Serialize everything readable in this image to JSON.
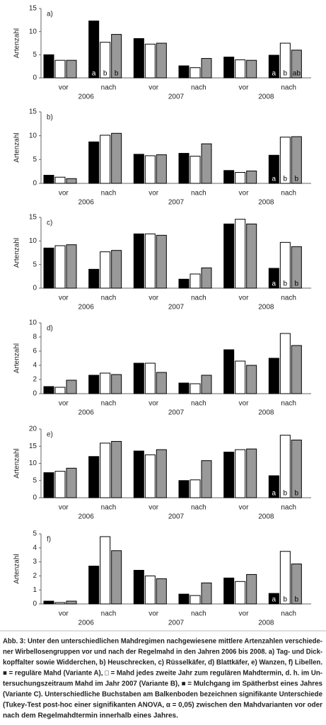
{
  "chart_data": [
    {
      "type": "bar",
      "title": "a)",
      "y_label": "Artenzahl",
      "categories": [
        "vor",
        "nach",
        "vor",
        "nach",
        "vor",
        "nach"
      ],
      "groups": [
        "2006",
        "2007",
        "2008"
      ],
      "ylim": [
        0,
        15
      ],
      "yticks": [
        0,
        5,
        10,
        15
      ],
      "series": [
        {
          "color": "#000000",
          "values": [
            5.0,
            12.3,
            8.5,
            2.6,
            4.5,
            4.9
          ],
          "letters": [
            null,
            "a",
            null,
            null,
            null,
            "a"
          ]
        },
        {
          "color": "#ffffff",
          "values": [
            3.8,
            7.7,
            7.3,
            2.2,
            3.9,
            7.5
          ],
          "letters": [
            null,
            "b",
            null,
            null,
            null,
            "b"
          ]
        },
        {
          "color": "#999999",
          "values": [
            3.8,
            9.4,
            7.5,
            4.2,
            3.8,
            6.0
          ],
          "letters": [
            null,
            "b",
            null,
            null,
            null,
            "ab"
          ]
        }
      ]
    },
    {
      "type": "bar",
      "title": "b)",
      "y_label": "Artenzahl",
      "categories": [
        "vor",
        "nach",
        "vor",
        "nach",
        "vor",
        "nach"
      ],
      "groups": [
        "2006",
        "2007",
        "2008"
      ],
      "ylim": [
        0,
        15
      ],
      "yticks": [
        0,
        5,
        10,
        15
      ],
      "series": [
        {
          "color": "#000000",
          "values": [
            1.7,
            8.7,
            6.1,
            6.3,
            2.7,
            5.9
          ],
          "letters": [
            null,
            null,
            null,
            null,
            null,
            "a"
          ]
        },
        {
          "color": "#ffffff",
          "values": [
            1.3,
            10.1,
            5.8,
            5.7,
            2.3,
            9.7
          ],
          "letters": [
            null,
            null,
            null,
            null,
            null,
            "b"
          ]
        },
        {
          "color": "#999999",
          "values": [
            1.0,
            10.5,
            6.0,
            8.3,
            2.6,
            9.8
          ],
          "letters": [
            null,
            null,
            null,
            null,
            null,
            "b"
          ]
        }
      ]
    },
    {
      "type": "bar",
      "title": "c)",
      "y_label": "Artenzahl",
      "categories": [
        "vor",
        "nach",
        "vor",
        "nach",
        "vor",
        "nach"
      ],
      "groups": [
        "2006",
        "2007",
        "2008"
      ],
      "ylim": [
        0,
        15
      ],
      "yticks": [
        0,
        5,
        10,
        15
      ],
      "series": [
        {
          "color": "#000000",
          "values": [
            8.5,
            4.0,
            11.5,
            1.9,
            13.6,
            4.2
          ],
          "letters": [
            null,
            null,
            null,
            null,
            null,
            "a"
          ]
        },
        {
          "color": "#ffffff",
          "values": [
            9.0,
            7.7,
            11.5,
            3.0,
            14.6,
            9.7
          ],
          "letters": [
            null,
            null,
            null,
            null,
            null,
            "b"
          ]
        },
        {
          "color": "#999999",
          "values": [
            9.2,
            8.0,
            11.2,
            4.3,
            13.6,
            8.8
          ],
          "letters": [
            null,
            null,
            null,
            null,
            null,
            "b"
          ]
        }
      ]
    },
    {
      "type": "bar",
      "title": "d)",
      "y_label": "Artenzahl",
      "categories": [
        "vor",
        "nach",
        "vor",
        "nach",
        "vor",
        "nach"
      ],
      "groups": [
        "2006",
        "2007",
        "2008"
      ],
      "ylim": [
        0,
        10
      ],
      "yticks": [
        0,
        2,
        4,
        6,
        8,
        10
      ],
      "series": [
        {
          "color": "#000000",
          "values": [
            1.0,
            2.6,
            4.3,
            1.5,
            6.2,
            5.0
          ]
        },
        {
          "color": "#ffffff",
          "values": [
            0.9,
            2.9,
            4.3,
            1.4,
            4.6,
            8.5
          ]
        },
        {
          "color": "#999999",
          "values": [
            1.9,
            2.7,
            3.0,
            2.6,
            4.0,
            6.8
          ]
        }
      ]
    },
    {
      "type": "bar",
      "title": "e)",
      "y_label": "Artenzahl",
      "categories": [
        "vor",
        "nach",
        "vor",
        "nach",
        "vor",
        "nach"
      ],
      "groups": [
        "2006",
        "2007",
        "2008"
      ],
      "ylim": [
        0,
        20
      ],
      "yticks": [
        0,
        5,
        10,
        15,
        20
      ],
      "series": [
        {
          "color": "#000000",
          "values": [
            7.3,
            12.0,
            13.6,
            5.0,
            13.3,
            6.4
          ],
          "letters": [
            null,
            null,
            null,
            null,
            null,
            "a"
          ]
        },
        {
          "color": "#ffffff",
          "values": [
            7.7,
            15.9,
            12.5,
            5.2,
            14.0,
            18.2
          ],
          "letters": [
            null,
            null,
            null,
            null,
            null,
            "b"
          ]
        },
        {
          "color": "#999999",
          "values": [
            8.6,
            16.4,
            14.0,
            10.8,
            14.2,
            16.8
          ],
          "letters": [
            null,
            null,
            null,
            null,
            null,
            "b"
          ]
        }
      ]
    },
    {
      "type": "bar",
      "title": "f)",
      "y_label": "Artenzahl",
      "categories": [
        "vor",
        "nach",
        "vor",
        "nach",
        "vor",
        "nach"
      ],
      "groups": [
        "2006",
        "2007",
        "2008"
      ],
      "ylim": [
        0,
        5
      ],
      "yticks": [
        0,
        1,
        2,
        3,
        4,
        5
      ],
      "series": [
        {
          "color": "#000000",
          "values": [
            0.2,
            2.7,
            2.4,
            0.7,
            1.85,
            0.75
          ],
          "letters": [
            null,
            null,
            null,
            null,
            null,
            "a"
          ]
        },
        {
          "color": "#ffffff",
          "values": [
            0.1,
            4.8,
            2.0,
            0.6,
            1.6,
            3.75
          ],
          "letters": [
            null,
            null,
            null,
            null,
            null,
            "b"
          ]
        },
        {
          "color": "#999999",
          "values": [
            0.2,
            3.8,
            1.8,
            1.5,
            2.1,
            2.85
          ],
          "letters": [
            null,
            null,
            null,
            null,
            null,
            "b"
          ]
        }
      ]
    }
  ],
  "caption": [
    "Abb. 3: Unter den unterschiedlichen Mahdregimen nachgewiesene mittlere Artenzahlen verschiede-",
    "ner Wirbellosengruppen vor und nach der Regelmahd in den Jahren 2006 bis 2008. a) Tag- und Dick-",
    "kopffalter sowie Widderchen, b) Heuschrecken, c) Rüsselkäfer, d) Blattkäfer, e) Wanzen, f) Libellen.",
    "■ = reguläre Mahd (Variante A), □ = Mahd jedes zweite Jahr zum regulären Mahdtermin, d. h. im Un-",
    "tersuchungszeitraum Mahd im Jahr 2007 (Variante B), ■ = Mulchgang im Spätherbst eines Jahres",
    "(Variante C). Unterschiedliche Buchstaben am Balkenboden bezeichnen signifikante Unterschiede",
    "(Tukey-Test post-hoc einer signifikanten ANOVA, α = 0,05) zwischen den Mahdvarianten vor oder",
    "nach dem Regelmahdtermin innerhalb eines Jahres."
  ]
}
